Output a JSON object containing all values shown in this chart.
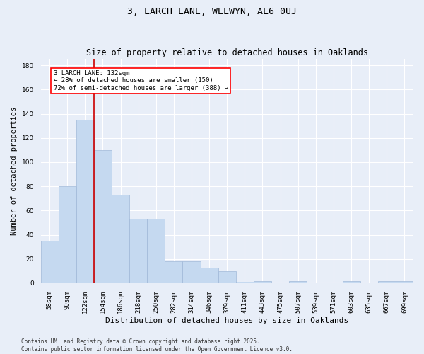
{
  "title": "3, LARCH LANE, WELWYN, AL6 0UJ",
  "subtitle": "Size of property relative to detached houses in Oaklands",
  "xlabel": "Distribution of detached houses by size in Oaklands",
  "ylabel": "Number of detached properties",
  "categories": [
    "58sqm",
    "90sqm",
    "122sqm",
    "154sqm",
    "186sqm",
    "218sqm",
    "250sqm",
    "282sqm",
    "314sqm",
    "346sqm",
    "379sqm",
    "411sqm",
    "443sqm",
    "475sqm",
    "507sqm",
    "539sqm",
    "571sqm",
    "603sqm",
    "635sqm",
    "667sqm",
    "699sqm"
  ],
  "values": [
    35,
    80,
    135,
    110,
    73,
    53,
    53,
    18,
    18,
    13,
    10,
    1,
    2,
    0,
    2,
    0,
    0,
    2,
    0,
    2,
    2
  ],
  "bar_color": "#c5d9f0",
  "bar_edge_color": "#a0b8d8",
  "red_line_x": 2.5,
  "annotation_text": "3 LARCH LANE: 132sqm\n← 28% of detached houses are smaller (150)\n72% of semi-detached houses are larger (388) →",
  "annotation_box_color": "white",
  "annotation_box_edge_color": "red",
  "red_line_color": "#cc0000",
  "ylim": [
    0,
    185
  ],
  "yticks": [
    0,
    20,
    40,
    60,
    80,
    100,
    120,
    140,
    160,
    180
  ],
  "bg_color": "#e8eef8",
  "plot_bg_color": "#e8eef8",
  "grid_color": "white",
  "footer_line1": "Contains HM Land Registry data © Crown copyright and database right 2025.",
  "footer_line2": "Contains public sector information licensed under the Open Government Licence v3.0.",
  "title_fontsize": 9.5,
  "subtitle_fontsize": 8.5,
  "xlabel_fontsize": 8,
  "ylabel_fontsize": 7.5,
  "tick_fontsize": 6.5,
  "annot_fontsize": 6.5,
  "footer_fontsize": 5.5
}
